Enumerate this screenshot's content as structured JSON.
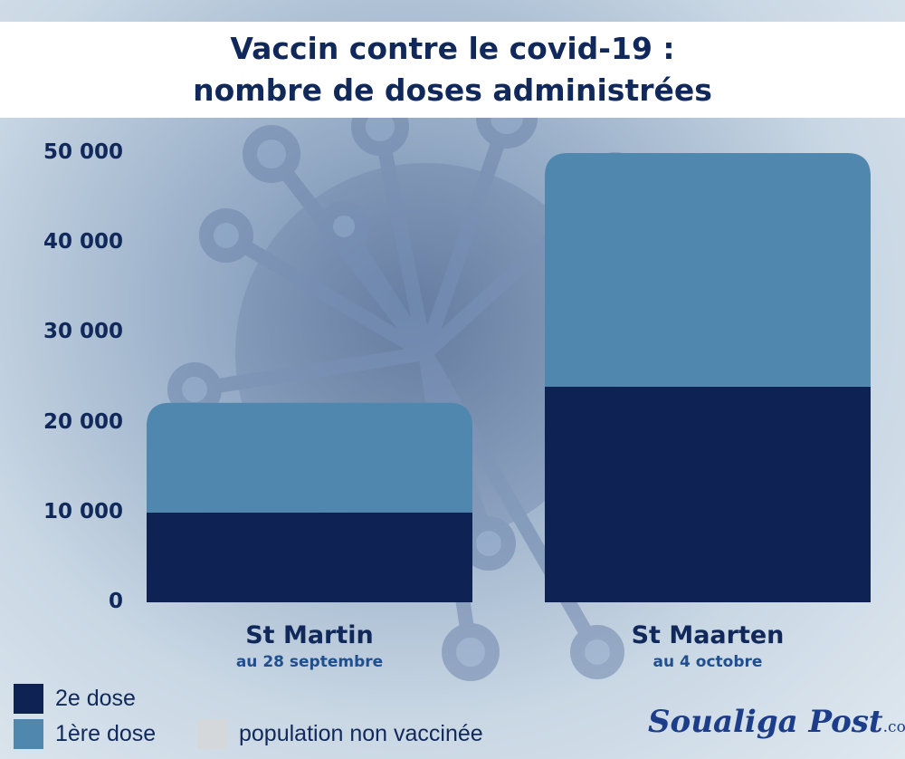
{
  "header": {
    "title_line1": "Vaccin contre le covid-19 :",
    "title_line2": "nombre de doses administrées"
  },
  "colors": {
    "dose2": "#0e2354",
    "dose1": "#4f87ae",
    "unvaccinated": "#d5d8da"
  },
  "chart_data": {
    "type": "bar",
    "stacked": true,
    "title": "Vaccin contre le covid-19 : nombre de doses administrées",
    "categories": [
      "St Martin",
      "St Maarten"
    ],
    "category_subtitles": [
      "au 28 septembre",
      "au 4 octobre"
    ],
    "series": [
      {
        "name": "2e dose",
        "values": [
          10000,
          24000
        ]
      },
      {
        "name": "1ère dose",
        "values": [
          12200,
          26000
        ]
      }
    ],
    "ylim": [
      0,
      50000
    ],
    "yticks": [
      0,
      10000,
      20000,
      30000,
      40000,
      50000
    ],
    "ytick_labels": [
      "0",
      "10 000",
      "20 000",
      "30 000",
      "40 000",
      "50 000"
    ],
    "legend": [
      {
        "label": "2e dose",
        "color": "#0e2354"
      },
      {
        "label": "1ère dose",
        "color": "#4f87ae"
      },
      {
        "label": "population non vaccinée",
        "color": "#d5d8da"
      }
    ],
    "legend_position": "bottom-left",
    "grid": false
  },
  "branding": {
    "logo_text": "Soualiga Post",
    "logo_suffix": ".com"
  }
}
